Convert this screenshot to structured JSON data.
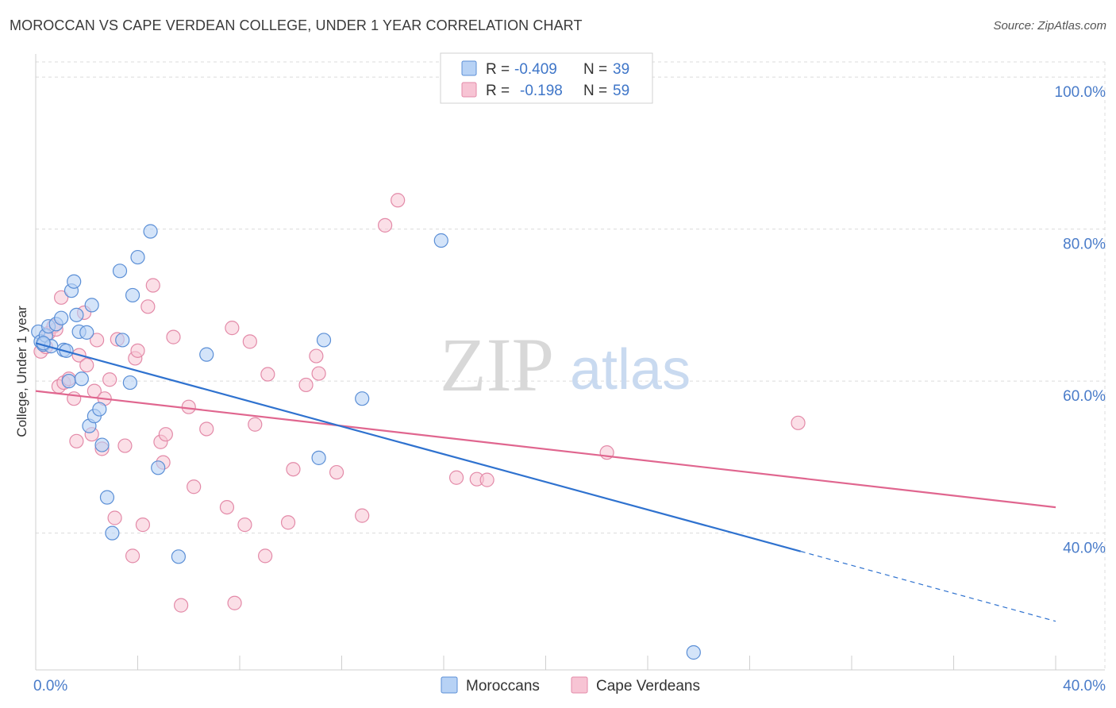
{
  "header": {
    "title": "MOROCCAN VS CAPE VERDEAN COLLEGE, UNDER 1 YEAR CORRELATION CHART",
    "source": "Source: ZipAtlas.com"
  },
  "watermark": {
    "zip": "ZIP",
    "atlas": "atlas"
  },
  "colors": {
    "moroccans_fill": "#b7d2f5",
    "moroccans_stroke": "#5b8fd6",
    "moroccans_line": "#2f72cf",
    "capeverdeans_fill": "#f7c4d4",
    "capeverdeans_stroke": "#e38aa8",
    "capeverdeans_line": "#e0668f",
    "grid": "#dcdcdc",
    "axis_text": "#4a7cc9"
  },
  "legend": {
    "rows": [
      {
        "r_label": "R =",
        "r_value": "-0.409",
        "n_label": "N =",
        "n_value": "39"
      },
      {
        "r_label": "R =",
        "r_value": "-0.198",
        "n_label": "N =",
        "n_value": "59"
      }
    ]
  },
  "chart_data": {
    "type": "scatter",
    "title": "MOROCCAN VS CAPE VERDEAN COLLEGE, UNDER 1 YEAR CORRELATION CHART",
    "xlabel": "",
    "ylabel": "College, Under 1 year",
    "xlim": [
      0,
      40
    ],
    "ylim": [
      22,
      102
    ],
    "x_tick_labels": [
      "0.0%",
      "40.0%"
    ],
    "y_ticks": [
      40,
      60,
      80,
      100
    ],
    "y_tick_labels": [
      "40.0%",
      "60.0%",
      "80.0%",
      "100.0%"
    ],
    "grid": true,
    "legend_position": "top-center",
    "series": [
      {
        "name": "Moroccans",
        "r": -0.409,
        "n": 39,
        "points": [
          [
            0.1,
            66.5
          ],
          [
            0.2,
            65.2
          ],
          [
            0.3,
            64.8
          ],
          [
            0.4,
            66.0
          ],
          [
            0.5,
            67.2
          ],
          [
            0.6,
            64.6
          ],
          [
            0.8,
            67.5
          ],
          [
            1.0,
            68.3
          ],
          [
            1.1,
            64.1
          ],
          [
            1.3,
            60.0
          ],
          [
            1.4,
            71.9
          ],
          [
            1.5,
            73.1
          ],
          [
            1.6,
            68.7
          ],
          [
            1.7,
            66.5
          ],
          [
            1.8,
            60.3
          ],
          [
            2.0,
            66.4
          ],
          [
            2.1,
            54.1
          ],
          [
            2.2,
            70.0
          ],
          [
            2.3,
            55.4
          ],
          [
            2.5,
            56.3
          ],
          [
            2.6,
            51.6
          ],
          [
            2.8,
            44.7
          ],
          [
            3.0,
            40.0
          ],
          [
            3.3,
            74.5
          ],
          [
            3.4,
            65.4
          ],
          [
            3.7,
            59.8
          ],
          [
            3.8,
            71.3
          ],
          [
            4.0,
            76.3
          ],
          [
            4.5,
            79.7
          ],
          [
            4.8,
            48.6
          ],
          [
            5.6,
            36.9
          ],
          [
            6.7,
            63.5
          ],
          [
            11.1,
            49.9
          ],
          [
            11.3,
            65.4
          ],
          [
            12.8,
            57.7
          ],
          [
            15.9,
            78.5
          ],
          [
            25.8,
            24.3
          ],
          [
            0.3,
            65.0
          ],
          [
            1.2,
            64.0
          ]
        ]
      },
      {
        "name": "Cape Verdeans",
        "r": -0.198,
        "n": 59,
        "points": [
          [
            0.2,
            63.9
          ],
          [
            0.4,
            64.5
          ],
          [
            0.5,
            66.3
          ],
          [
            0.7,
            67.2
          ],
          [
            0.9,
            59.3
          ],
          [
            1.0,
            71.0
          ],
          [
            1.1,
            59.8
          ],
          [
            1.3,
            60.3
          ],
          [
            1.5,
            57.7
          ],
          [
            1.6,
            52.1
          ],
          [
            1.7,
            63.4
          ],
          [
            1.9,
            69.0
          ],
          [
            2.0,
            62.1
          ],
          [
            2.2,
            53.0
          ],
          [
            2.3,
            58.7
          ],
          [
            2.4,
            65.4
          ],
          [
            2.6,
            51.1
          ],
          [
            2.7,
            57.7
          ],
          [
            2.9,
            60.2
          ],
          [
            3.1,
            42.0
          ],
          [
            3.2,
            65.5
          ],
          [
            3.5,
            51.5
          ],
          [
            3.8,
            37.0
          ],
          [
            3.9,
            63.0
          ],
          [
            4.0,
            64.0
          ],
          [
            4.2,
            41.1
          ],
          [
            4.4,
            69.8
          ],
          [
            4.6,
            72.6
          ],
          [
            4.9,
            52.0
          ],
          [
            5.0,
            49.3
          ],
          [
            5.1,
            53.0
          ],
          [
            5.4,
            65.8
          ],
          [
            5.7,
            30.5
          ],
          [
            6.0,
            56.6
          ],
          [
            6.2,
            46.1
          ],
          [
            6.7,
            53.7
          ],
          [
            7.5,
            43.4
          ],
          [
            7.7,
            67.0
          ],
          [
            7.8,
            30.8
          ],
          [
            8.2,
            41.1
          ],
          [
            8.4,
            65.2
          ],
          [
            8.6,
            54.3
          ],
          [
            9.0,
            37.0
          ],
          [
            9.1,
            60.9
          ],
          [
            9.9,
            41.4
          ],
          [
            10.1,
            48.4
          ],
          [
            10.6,
            59.5
          ],
          [
            11.0,
            63.3
          ],
          [
            11.1,
            61.0
          ],
          [
            11.8,
            48.0
          ],
          [
            12.8,
            42.3
          ],
          [
            13.7,
            80.5
          ],
          [
            14.2,
            83.8
          ],
          [
            16.5,
            47.3
          ],
          [
            17.3,
            47.1
          ],
          [
            17.7,
            47.0
          ],
          [
            22.4,
            50.6
          ],
          [
            29.9,
            54.5
          ],
          [
            0.8,
            66.8
          ]
        ]
      }
    ],
    "trend_lines": [
      {
        "series": "Moroccans",
        "x0": 0,
        "y0": 65.0,
        "x1": 30.0,
        "y1": 37.6,
        "dashed_to_x": 40,
        "dashed_to_y": 28.4
      },
      {
        "series": "Cape Verdeans",
        "x0": 0,
        "y0": 58.7,
        "x1": 40,
        "y1": 43.4
      }
    ]
  },
  "bottom_legend": {
    "items": [
      {
        "label": "Moroccans"
      },
      {
        "label": "Cape Verdeans"
      }
    ]
  }
}
